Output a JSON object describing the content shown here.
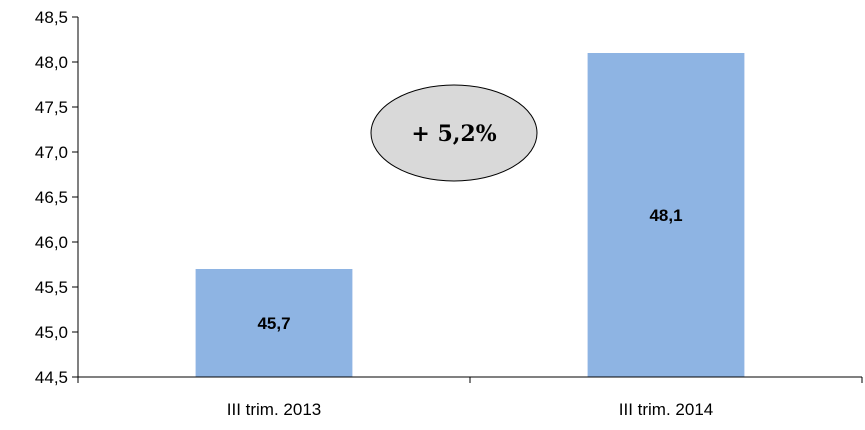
{
  "chart_data": {
    "type": "bar",
    "categories": [
      "III trim. 2013",
      "III trim. 2014"
    ],
    "values": [
      45.7,
      48.1
    ],
    "data_labels": [
      "45,7",
      "48,1"
    ],
    "ylim": [
      44.5,
      48.5
    ],
    "y_ticks": [
      44.5,
      45.0,
      45.5,
      46.0,
      46.5,
      47.0,
      47.5,
      48.0,
      48.5
    ],
    "y_tick_labels": [
      "44,5",
      "45,0",
      "45,5",
      "46,0",
      "46,5",
      "47,0",
      "47,5",
      "48,0",
      "48,5"
    ],
    "grid": false,
    "bar_color": "#8eb4e3",
    "annotation": {
      "text": "+ 5,2%",
      "fill": "#d9d9d9",
      "stroke": "#000000"
    }
  }
}
